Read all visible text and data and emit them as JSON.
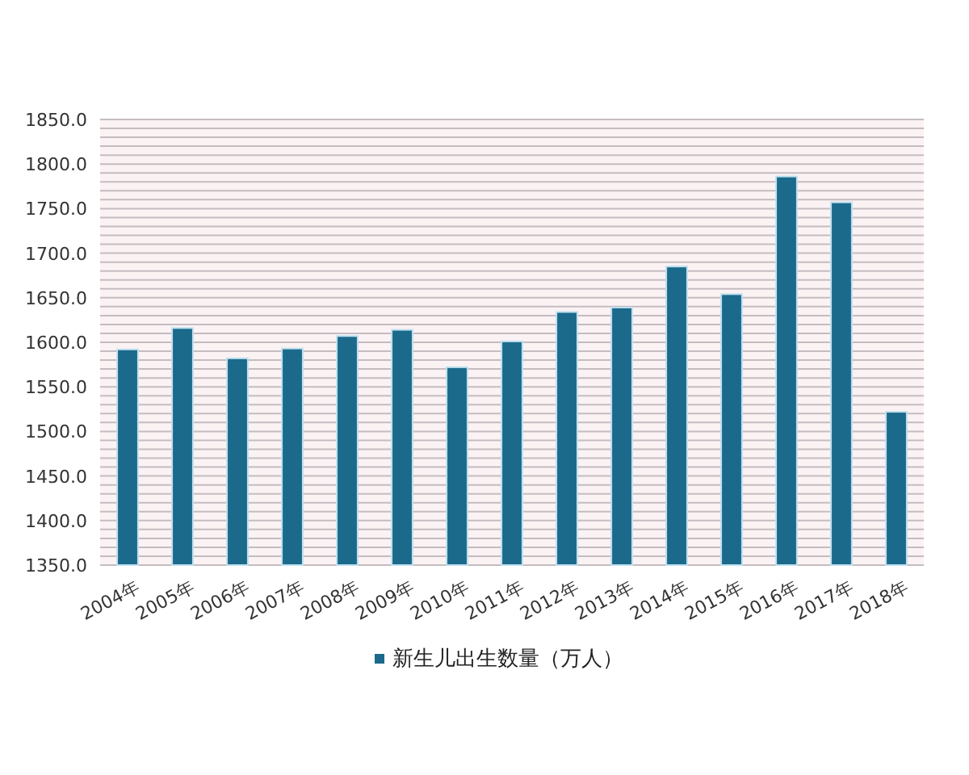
{
  "chart_data": {
    "type": "bar",
    "categories": [
      "2004年",
      "2005年",
      "2006年",
      "2007年",
      "2008年",
      "2009年",
      "2010年",
      "2011年",
      "2012年",
      "2013年",
      "2014年",
      "2015年",
      "2016年",
      "2017年",
      "2018年"
    ],
    "series": [
      {
        "name": "新生儿出生数量（万人）",
        "color": "#1b6a8c",
        "values": [
          1592,
          1616,
          1582,
          1593,
          1607,
          1614,
          1572,
          1601,
          1634,
          1639,
          1685,
          1654,
          1786,
          1757,
          1522
        ]
      }
    ],
    "ylim": [
      1350,
      1850
    ],
    "yticks": [
      {
        "value": 1350,
        "label": "1350.0"
      },
      {
        "value": 1360,
        "label": null
      },
      {
        "value": 1370,
        "label": null
      },
      {
        "value": 1380,
        "label": null
      },
      {
        "value": 1390,
        "label": null
      },
      {
        "value": 1400,
        "label": "1400.0"
      },
      {
        "value": 1410,
        "label": null
      },
      {
        "value": 1420,
        "label": null
      },
      {
        "value": 1430,
        "label": null
      },
      {
        "value": 1440,
        "label": null
      },
      {
        "value": 1450,
        "label": "1450.0"
      },
      {
        "value": 1460,
        "label": null
      },
      {
        "value": 1470,
        "label": null
      },
      {
        "value": 1480,
        "label": null
      },
      {
        "value": 1490,
        "label": null
      },
      {
        "value": 1500,
        "label": "1500.0"
      },
      {
        "value": 1510,
        "label": null
      },
      {
        "value": 1520,
        "label": null
      },
      {
        "value": 1530,
        "label": null
      },
      {
        "value": 1540,
        "label": null
      },
      {
        "value": 1550,
        "label": "1550.0"
      },
      {
        "value": 1560,
        "label": null
      },
      {
        "value": 1570,
        "label": null
      },
      {
        "value": 1580,
        "label": null
      },
      {
        "value": 1590,
        "label": null
      },
      {
        "value": 1600,
        "label": "1600.0"
      },
      {
        "value": 1610,
        "label": null
      },
      {
        "value": 1620,
        "label": null
      },
      {
        "value": 1630,
        "label": null
      },
      {
        "value": 1640,
        "label": null
      },
      {
        "value": 1650,
        "label": "1650.0"
      },
      {
        "value": 1660,
        "label": null
      },
      {
        "value": 1670,
        "label": null
      },
      {
        "value": 1680,
        "label": null
      },
      {
        "value": 1690,
        "label": null
      },
      {
        "value": 1700,
        "label": "1700.0"
      },
      {
        "value": 1710,
        "label": null
      },
      {
        "value": 1720,
        "label": null
      },
      {
        "value": 1730,
        "label": null
      },
      {
        "value": 1740,
        "label": null
      },
      {
        "value": 1750,
        "label": "1750.0"
      },
      {
        "value": 1760,
        "label": null
      },
      {
        "value": 1770,
        "label": null
      },
      {
        "value": 1780,
        "label": null
      },
      {
        "value": 1790,
        "label": null
      },
      {
        "value": 1800,
        "label": "1800.0"
      },
      {
        "value": 1810,
        "label": null
      },
      {
        "value": 1820,
        "label": null
      },
      {
        "value": 1830,
        "label": null
      },
      {
        "value": 1840,
        "label": null
      },
      {
        "value": 1850,
        "label": "1850.0"
      }
    ],
    "grid": "y",
    "legend": "bottom"
  }
}
